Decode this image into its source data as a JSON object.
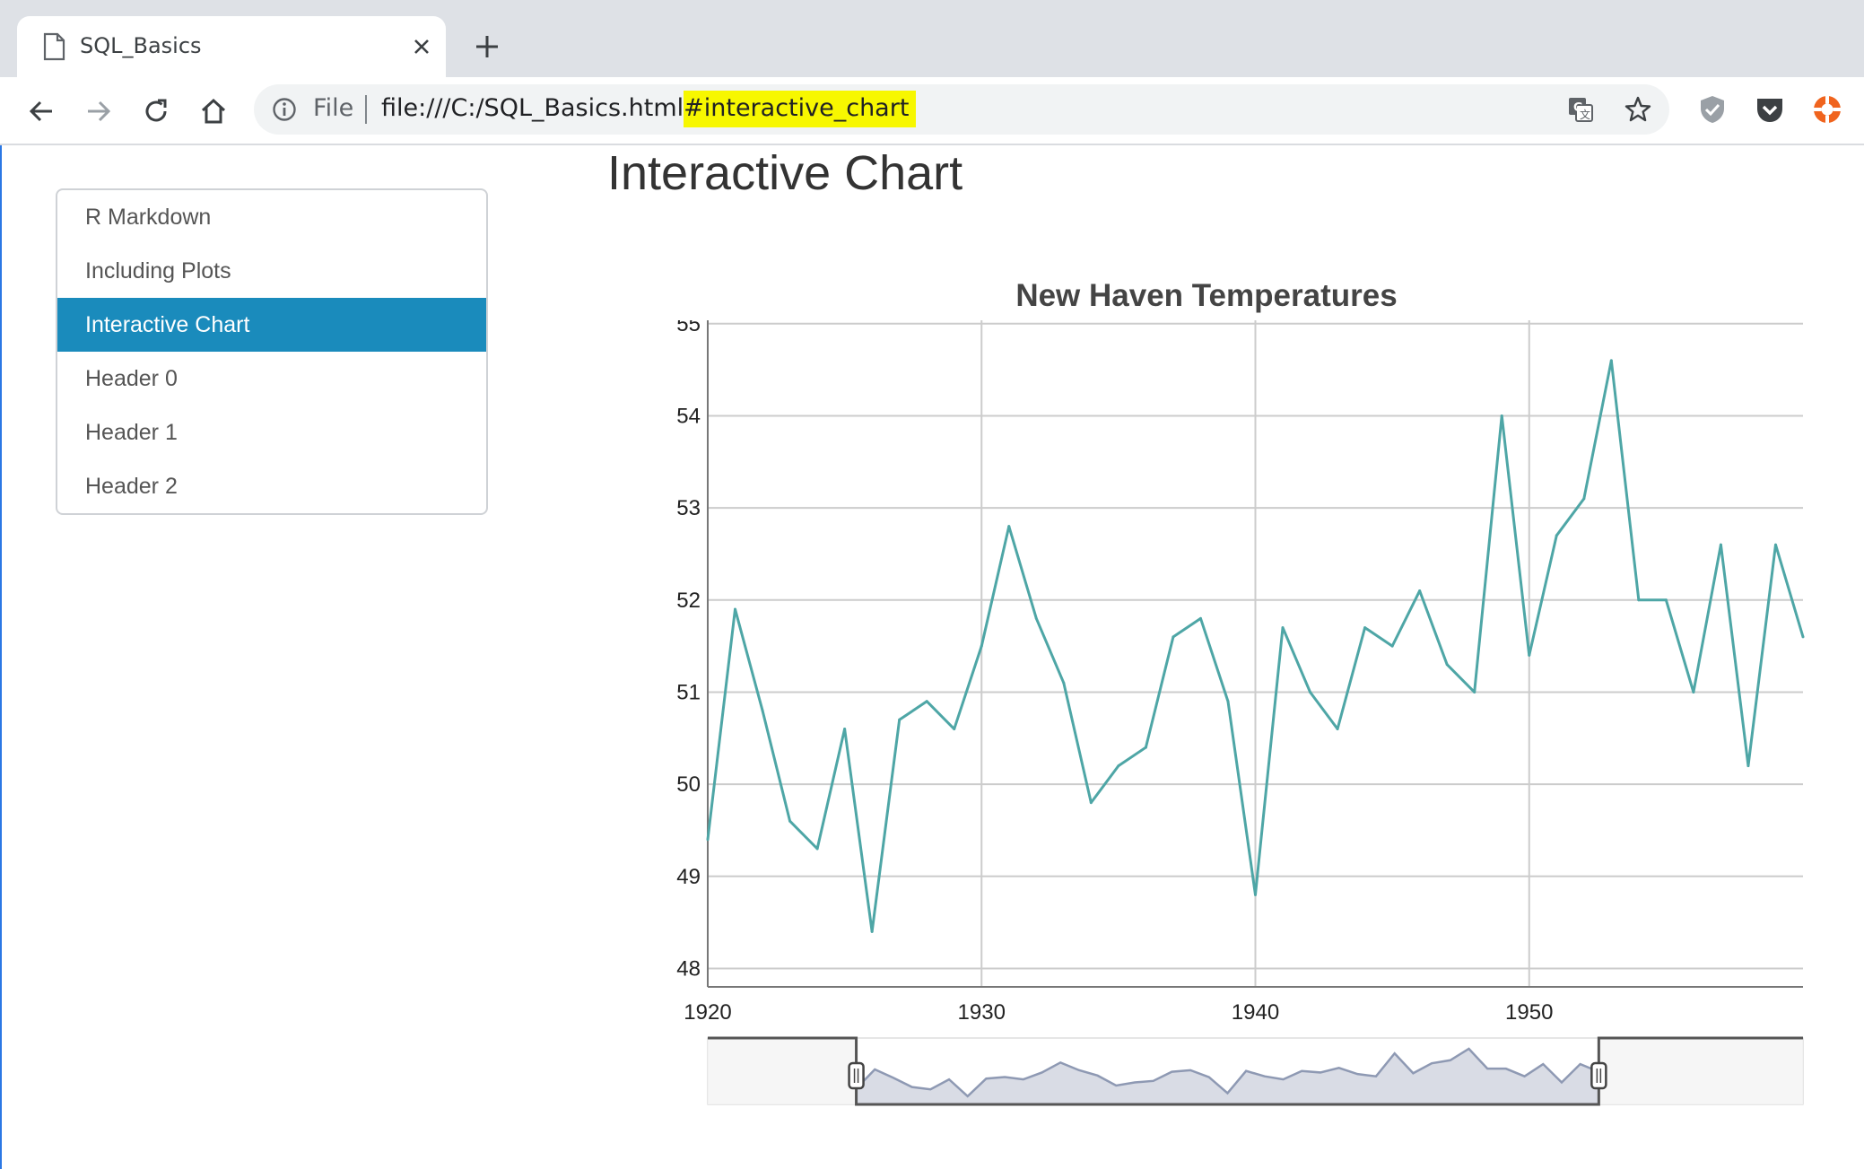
{
  "browser": {
    "tab_title": "SQL_Basics",
    "scheme_label": "File",
    "url_base": "file:///C:/SQL_Basics.html",
    "url_fragment": "#interactive_chart"
  },
  "page": {
    "title": "Interactive Chart",
    "toc": [
      {
        "label": "R Markdown",
        "active": false
      },
      {
        "label": "Including Plots",
        "active": false
      },
      {
        "label": "Interactive Chart",
        "active": true
      },
      {
        "label": "Header 0",
        "active": false
      },
      {
        "label": "Header 1",
        "active": false
      },
      {
        "label": "Header 2",
        "active": false
      }
    ]
  },
  "colors": {
    "accent": "#1a8bbc",
    "series": "#4ea6a6",
    "highlight": "#f7f700",
    "range_fill": "#b9bfcf",
    "range_line": "#8e99b3"
  },
  "chart_data": {
    "type": "line",
    "title": "New Haven Temperatures",
    "xlabel": "",
    "ylabel": "",
    "xlim": [
      1920,
      1960
    ],
    "ylim": [
      47.8,
      55.3
    ],
    "x_ticks": [
      1920,
      1930,
      1940,
      1950
    ],
    "y_ticks": [
      48,
      49,
      50,
      51,
      52,
      53,
      54,
      55
    ],
    "grid": true,
    "legend": "none",
    "series": [
      {
        "x": [
          1920,
          1921,
          1922,
          1923,
          1924,
          1925,
          1926,
          1927,
          1928,
          1929,
          1930,
          1931,
          1932,
          1933,
          1934,
          1935,
          1936,
          1937,
          1938,
          1939,
          1940,
          1941,
          1942,
          1943,
          1944,
          1945,
          1946,
          1947,
          1948,
          1949,
          1950,
          1951,
          1952,
          1953,
          1954,
          1955,
          1956,
          1957,
          1958,
          1959,
          1960
        ],
        "y": [
          49.4,
          51.9,
          50.8,
          49.6,
          49.3,
          50.6,
          48.4,
          50.7,
          50.9,
          50.6,
          51.5,
          52.8,
          51.8,
          51.1,
          49.8,
          50.2,
          50.4,
          51.6,
          51.8,
          50.9,
          48.8,
          51.7,
          51.0,
          50.6,
          51.7,
          51.5,
          52.1,
          51.3,
          51.0,
          54.0,
          51.4,
          52.7,
          53.1,
          54.6,
          52.0,
          52.0,
          51.0,
          52.6,
          50.2,
          52.6,
          51.6
        ]
      }
    ],
    "range_selector": {
      "full_range": [
        1912,
        1971
      ],
      "selected_range": [
        1920,
        1960
      ]
    }
  }
}
